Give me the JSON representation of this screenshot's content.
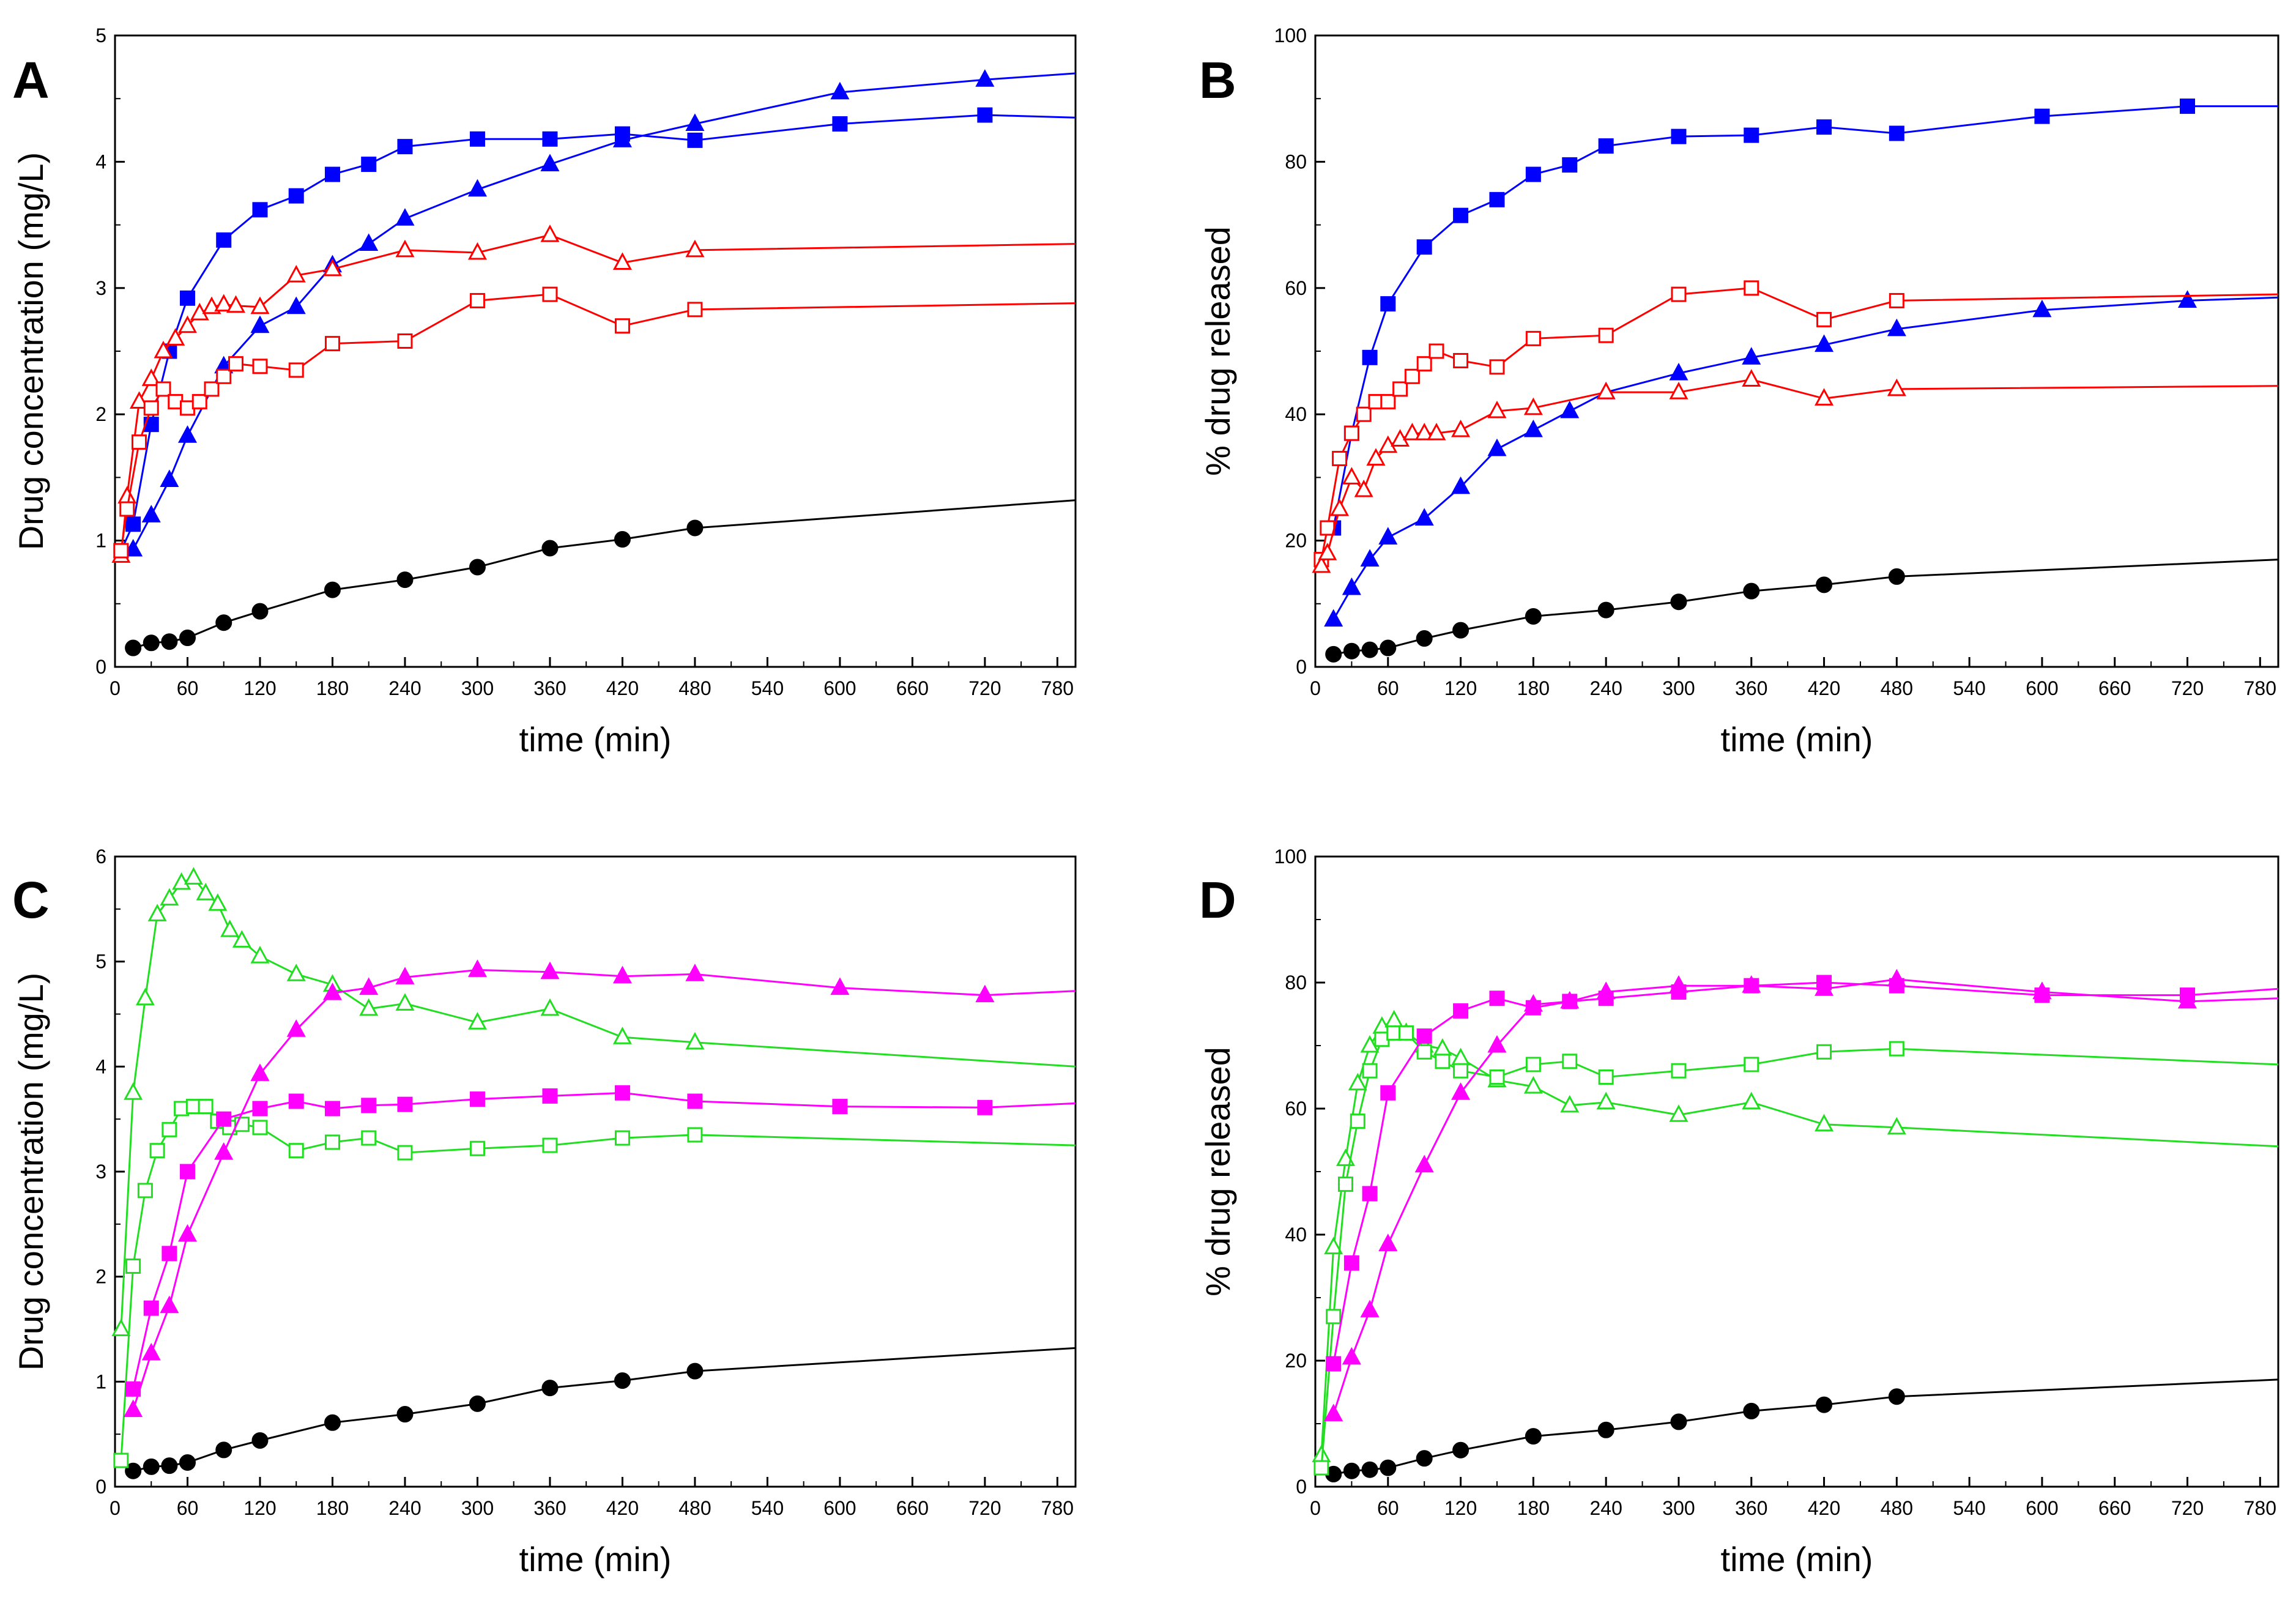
{
  "chart_data": [
    {
      "panel": "A",
      "type": "line",
      "xlabel": "time (min)",
      "ylabel": "Drug concentration (mg/L)",
      "xlim": [
        0,
        795
      ],
      "ylim": [
        0,
        5
      ],
      "xticks": [
        0,
        60,
        120,
        180,
        240,
        300,
        360,
        420,
        480,
        540,
        600,
        660,
        720,
        780
      ],
      "yticks": [
        0,
        1,
        2,
        3,
        4,
        5
      ],
      "series": [
        {
          "name": "black-filled-circle",
          "color": "#000000",
          "marker": "circle",
          "filled": true,
          "x": [
            15,
            30,
            45,
            60,
            90,
            120,
            180,
            240,
            300,
            360,
            420,
            480,
            795
          ],
          "y": [
            0.15,
            0.19,
            0.2,
            0.23,
            0.35,
            0.44,
            0.61,
            0.69,
            0.79,
            0.94,
            1.01,
            1.1,
            1.32
          ]
        },
        {
          "name": "blue-filled-square",
          "color": "#0000ff",
          "marker": "square",
          "filled": true,
          "x": [
            5,
            15,
            30,
            45,
            60,
            90,
            120,
            150,
            180,
            210,
            240,
            300,
            360,
            420,
            480,
            600,
            720,
            795
          ],
          "y": [
            0.92,
            1.13,
            1.92,
            2.5,
            2.92,
            3.38,
            3.62,
            3.73,
            3.9,
            3.98,
            4.12,
            4.18,
            4.18,
            4.22,
            4.17,
            4.3,
            4.37,
            4.35
          ]
        },
        {
          "name": "blue-filled-triangle",
          "color": "#0000ff",
          "marker": "triangle",
          "filled": true,
          "x": [
            15,
            30,
            45,
            60,
            90,
            120,
            150,
            180,
            210,
            240,
            300,
            360,
            420,
            480,
            600,
            720,
            795
          ],
          "y": [
            0.93,
            1.2,
            1.48,
            1.83,
            2.38,
            2.7,
            2.85,
            3.18,
            3.35,
            3.55,
            3.78,
            3.98,
            4.17,
            4.3,
            4.55,
            4.65,
            4.7
          ]
        },
        {
          "name": "red-open-triangle",
          "color": "#ff0000",
          "marker": "triangle",
          "filled": false,
          "x": [
            5,
            10,
            20,
            30,
            40,
            50,
            60,
            70,
            80,
            90,
            100,
            120,
            150,
            180,
            240,
            300,
            360,
            420,
            480,
            795
          ],
          "y": [
            0.88,
            1.35,
            2.1,
            2.28,
            2.5,
            2.6,
            2.7,
            2.8,
            2.85,
            2.87,
            2.86,
            2.85,
            3.1,
            3.15,
            3.3,
            3.28,
            3.42,
            3.2,
            3.3,
            3.35
          ]
        },
        {
          "name": "red-open-square",
          "color": "#ff0000",
          "marker": "square",
          "filled": false,
          "x": [
            5,
            10,
            20,
            30,
            40,
            50,
            60,
            70,
            80,
            90,
            100,
            120,
            150,
            180,
            240,
            300,
            360,
            420,
            480,
            795
          ],
          "y": [
            0.92,
            1.25,
            1.78,
            2.05,
            2.2,
            2.1,
            2.05,
            2.1,
            2.2,
            2.3,
            2.4,
            2.38,
            2.35,
            2.56,
            2.58,
            2.9,
            2.95,
            2.7,
            2.83,
            2.88
          ]
        }
      ]
    },
    {
      "panel": "B",
      "type": "line",
      "xlabel": "time (min)",
      "ylabel": "% drug released",
      "xlim": [
        0,
        795
      ],
      "ylim": [
        0,
        100
      ],
      "xticks": [
        0,
        60,
        120,
        180,
        240,
        300,
        360,
        420,
        480,
        540,
        600,
        660,
        720,
        780
      ],
      "yticks": [
        0,
        20,
        40,
        60,
        80,
        100
      ],
      "series": [
        {
          "name": "black-filled-circle",
          "color": "#000000",
          "marker": "circle",
          "filled": true,
          "x": [
            15,
            30,
            45,
            60,
            90,
            120,
            180,
            240,
            300,
            360,
            420,
            480,
            795
          ],
          "y": [
            2,
            2.5,
            2.7,
            3,
            4.5,
            5.8,
            8,
            9,
            10.3,
            12,
            13,
            14.3,
            17
          ]
        },
        {
          "name": "blue-filled-square",
          "color": "#0000ff",
          "marker": "square",
          "filled": true,
          "x": [
            15,
            30,
            45,
            60,
            90,
            120,
            150,
            180,
            210,
            240,
            300,
            360,
            420,
            480,
            600,
            720,
            795
          ],
          "y": [
            22,
            37,
            49,
            57.5,
            66.5,
            71.5,
            74,
            78,
            79.5,
            82.5,
            84,
            84.2,
            85.5,
            84.5,
            87.2,
            88.8,
            88.8
          ]
        },
        {
          "name": "blue-filled-triangle",
          "color": "#0000ff",
          "marker": "triangle",
          "filled": true,
          "x": [
            15,
            30,
            45,
            60,
            90,
            120,
            150,
            180,
            210,
            240,
            300,
            360,
            420,
            480,
            600,
            720,
            795
          ],
          "y": [
            7.5,
            12.5,
            17,
            20.5,
            23.5,
            28.5,
            34.5,
            37.5,
            40.5,
            43.5,
            46.5,
            49,
            51,
            53.5,
            56.5,
            58,
            58.5
          ]
        },
        {
          "name": "red-open-square",
          "color": "#ff0000",
          "marker": "square",
          "filled": false,
          "x": [
            5,
            10,
            20,
            30,
            40,
            50,
            60,
            70,
            80,
            90,
            100,
            120,
            150,
            180,
            240,
            300,
            360,
            420,
            480,
            795
          ],
          "y": [
            17,
            22,
            33,
            37,
            40,
            42,
            42,
            44,
            46,
            48,
            50,
            48.5,
            47.5,
            52,
            52.5,
            59,
            60,
            55,
            58,
            59
          ]
        },
        {
          "name": "red-open-triangle",
          "color": "#ff0000",
          "marker": "triangle",
          "filled": false,
          "x": [
            5,
            10,
            20,
            30,
            40,
            50,
            60,
            70,
            80,
            90,
            100,
            120,
            150,
            180,
            240,
            300,
            360,
            420,
            480,
            795
          ],
          "y": [
            16,
            18,
            25,
            30,
            28,
            33,
            35,
            36,
            37,
            37,
            37,
            37.5,
            40.5,
            41,
            43.5,
            43.5,
            45.5,
            42.5,
            44,
            44.5
          ]
        }
      ]
    },
    {
      "panel": "C",
      "type": "line",
      "xlabel": "time (min)",
      "ylabel": "Drug concentration (mg/L)",
      "xlim": [
        0,
        795
      ],
      "ylim": [
        0,
        6
      ],
      "xticks": [
        0,
        60,
        120,
        180,
        240,
        300,
        360,
        420,
        480,
        540,
        600,
        660,
        720,
        780
      ],
      "yticks": [
        0,
        1,
        2,
        3,
        4,
        5,
        6
      ],
      "series": [
        {
          "name": "black-filled-circle",
          "color": "#000000",
          "marker": "circle",
          "filled": true,
          "x": [
            15,
            30,
            45,
            60,
            90,
            120,
            180,
            240,
            300,
            360,
            420,
            480,
            795
          ],
          "y": [
            0.15,
            0.19,
            0.2,
            0.23,
            0.35,
            0.44,
            0.61,
            0.69,
            0.79,
            0.94,
            1.01,
            1.1,
            1.32
          ]
        },
        {
          "name": "green-open-triangle",
          "color": "#22dd22",
          "marker": "triangle",
          "filled": false,
          "x": [
            5,
            15,
            25,
            35,
            45,
            55,
            65,
            75,
            85,
            95,
            105,
            120,
            150,
            180,
            210,
            240,
            300,
            360,
            420,
            480,
            795
          ],
          "y": [
            1.5,
            3.75,
            4.65,
            5.45,
            5.6,
            5.75,
            5.8,
            5.65,
            5.55,
            5.3,
            5.2,
            5.05,
            4.88,
            4.78,
            4.55,
            4.6,
            4.42,
            4.55,
            4.28,
            4.23,
            4.0
          ]
        },
        {
          "name": "green-open-square",
          "color": "#22dd22",
          "marker": "square",
          "filled": false,
          "x": [
            5,
            15,
            25,
            35,
            45,
            55,
            65,
            75,
            85,
            95,
            105,
            120,
            150,
            180,
            210,
            240,
            300,
            360,
            420,
            480,
            795
          ],
          "y": [
            0.25,
            2.1,
            2.82,
            3.2,
            3.4,
            3.6,
            3.62,
            3.62,
            3.48,
            3.42,
            3.45,
            3.42,
            3.2,
            3.28,
            3.32,
            3.18,
            3.22,
            3.25,
            3.32,
            3.35,
            3.25
          ]
        },
        {
          "name": "magenta-filled-triangle",
          "color": "#ff00ff",
          "marker": "triangle",
          "filled": true,
          "x": [
            15,
            30,
            45,
            60,
            90,
            120,
            150,
            180,
            210,
            240,
            300,
            360,
            420,
            480,
            600,
            720,
            795
          ],
          "y": [
            0.73,
            1.27,
            1.72,
            2.4,
            3.18,
            3.93,
            4.35,
            4.7,
            4.75,
            4.85,
            4.92,
            4.9,
            4.86,
            4.88,
            4.75,
            4.68,
            4.72
          ]
        },
        {
          "name": "magenta-filled-square",
          "color": "#ff00ff",
          "marker": "square",
          "filled": true,
          "x": [
            15,
            30,
            45,
            60,
            90,
            120,
            150,
            180,
            210,
            240,
            300,
            360,
            420,
            480,
            600,
            720,
            795
          ],
          "y": [
            0.93,
            1.7,
            2.22,
            3.0,
            3.5,
            3.6,
            3.67,
            3.6,
            3.63,
            3.64,
            3.69,
            3.72,
            3.75,
            3.67,
            3.62,
            3.61,
            3.65
          ]
        }
      ]
    },
    {
      "panel": "D",
      "type": "line",
      "xlabel": "time (min)",
      "ylabel": "% drug released",
      "xlim": [
        0,
        795
      ],
      "ylim": [
        0,
        100
      ],
      "xticks": [
        0,
        60,
        120,
        180,
        240,
        300,
        360,
        420,
        480,
        540,
        600,
        660,
        720,
        780
      ],
      "yticks": [
        0,
        20,
        40,
        60,
        80,
        100
      ],
      "series": [
        {
          "name": "black-filled-circle",
          "color": "#000000",
          "marker": "circle",
          "filled": true,
          "x": [
            15,
            30,
            45,
            60,
            90,
            120,
            180,
            240,
            300,
            360,
            420,
            480,
            795
          ],
          "y": [
            2,
            2.5,
            2.7,
            3,
            4.5,
            5.8,
            8,
            9,
            10.3,
            12,
            13,
            14.3,
            17
          ]
        },
        {
          "name": "green-open-triangle",
          "color": "#22dd22",
          "marker": "triangle",
          "filled": false,
          "x": [
            5,
            15,
            25,
            35,
            45,
            55,
            65,
            75,
            90,
            105,
            120,
            150,
            180,
            210,
            240,
            300,
            360,
            420,
            480,
            795
          ],
          "y": [
            5,
            38,
            52,
            64,
            70,
            73,
            74,
            72,
            70,
            69.5,
            68,
            64.5,
            63.5,
            60.5,
            61,
            59,
            61,
            57.5,
            57,
            54
          ]
        },
        {
          "name": "green-open-square",
          "color": "#22dd22",
          "marker": "square",
          "filled": false,
          "x": [
            5,
            15,
            25,
            35,
            45,
            55,
            65,
            75,
            90,
            105,
            120,
            150,
            180,
            210,
            240,
            300,
            360,
            420,
            480,
            795
          ],
          "y": [
            3,
            27,
            48,
            58,
            66,
            71,
            72,
            72,
            69,
            67.5,
            66,
            65,
            67,
            67.5,
            65,
            66,
            67,
            69,
            69.5,
            67
          ]
        },
        {
          "name": "magenta-filled-square",
          "color": "#ff00ff",
          "marker": "square",
          "filled": true,
          "x": [
            15,
            30,
            45,
            60,
            90,
            120,
            150,
            180,
            210,
            240,
            300,
            360,
            420,
            480,
            600,
            720,
            795
          ],
          "y": [
            19.5,
            35.5,
            46.5,
            62.5,
            71.5,
            75.5,
            77.5,
            76,
            77,
            77.5,
            78.5,
            79.5,
            80,
            79.5,
            78,
            78,
            79
          ]
        },
        {
          "name": "magenta-filled-triangle",
          "color": "#ff00ff",
          "marker": "triangle",
          "filled": true,
          "x": [
            15,
            30,
            45,
            60,
            90,
            120,
            150,
            180,
            210,
            240,
            300,
            360,
            420,
            480,
            600,
            720,
            795
          ],
          "y": [
            11.5,
            20.5,
            28,
            38.5,
            51,
            62.5,
            70,
            76.5,
            77,
            78.5,
            79.5,
            79.5,
            79,
            80.5,
            78.5,
            77,
            77.5
          ]
        }
      ]
    }
  ]
}
